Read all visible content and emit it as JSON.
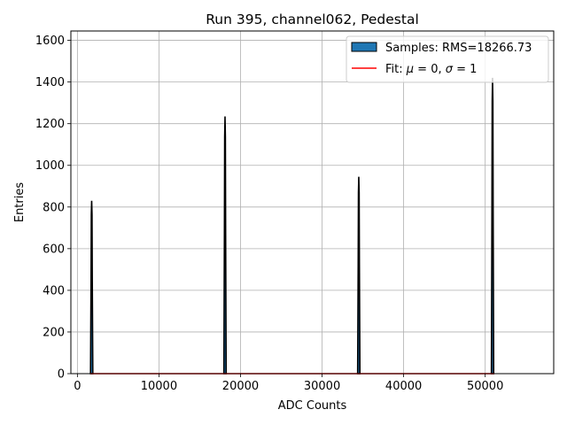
{
  "chart_data": {
    "type": "bar",
    "title": "Run 395, channel062, Pedestal",
    "xlabel": "ADC Counts",
    "ylabel": "Entries",
    "xlim": [
      -800,
      58400
    ],
    "ylim": [
      0,
      1645
    ],
    "xticks": [
      0,
      10000,
      20000,
      30000,
      40000,
      50000
    ],
    "xtick_labels": [
      "0",
      "10000",
      "20000",
      "30000",
      "40000",
      "50000"
    ],
    "yticks": [
      0,
      200,
      400,
      600,
      800,
      1000,
      1200,
      1400,
      1600
    ],
    "ytick_labels": [
      "0",
      "200",
      "400",
      "600",
      "800",
      "1000",
      "1200",
      "1400",
      "1600"
    ],
    "grid": true,
    "legend_position": "top-right",
    "series": [
      {
        "name": "Samples: RMS=18266.73",
        "kind": "histogram",
        "color": "#1f77b4",
        "edgecolor": "#000000",
        "peaks": [
          {
            "center": 1750,
            "height": 830
          },
          {
            "center": 18100,
            "height": 1235
          },
          {
            "center": 34500,
            "height": 945
          },
          {
            "center": 50900,
            "height": 1420
          }
        ]
      },
      {
        "name": "Fit: μ = 0, σ = 1",
        "kind": "line",
        "color": "#ff0000",
        "x": [
          1600,
          51100
        ],
        "y": [
          0,
          0
        ]
      }
    ]
  }
}
